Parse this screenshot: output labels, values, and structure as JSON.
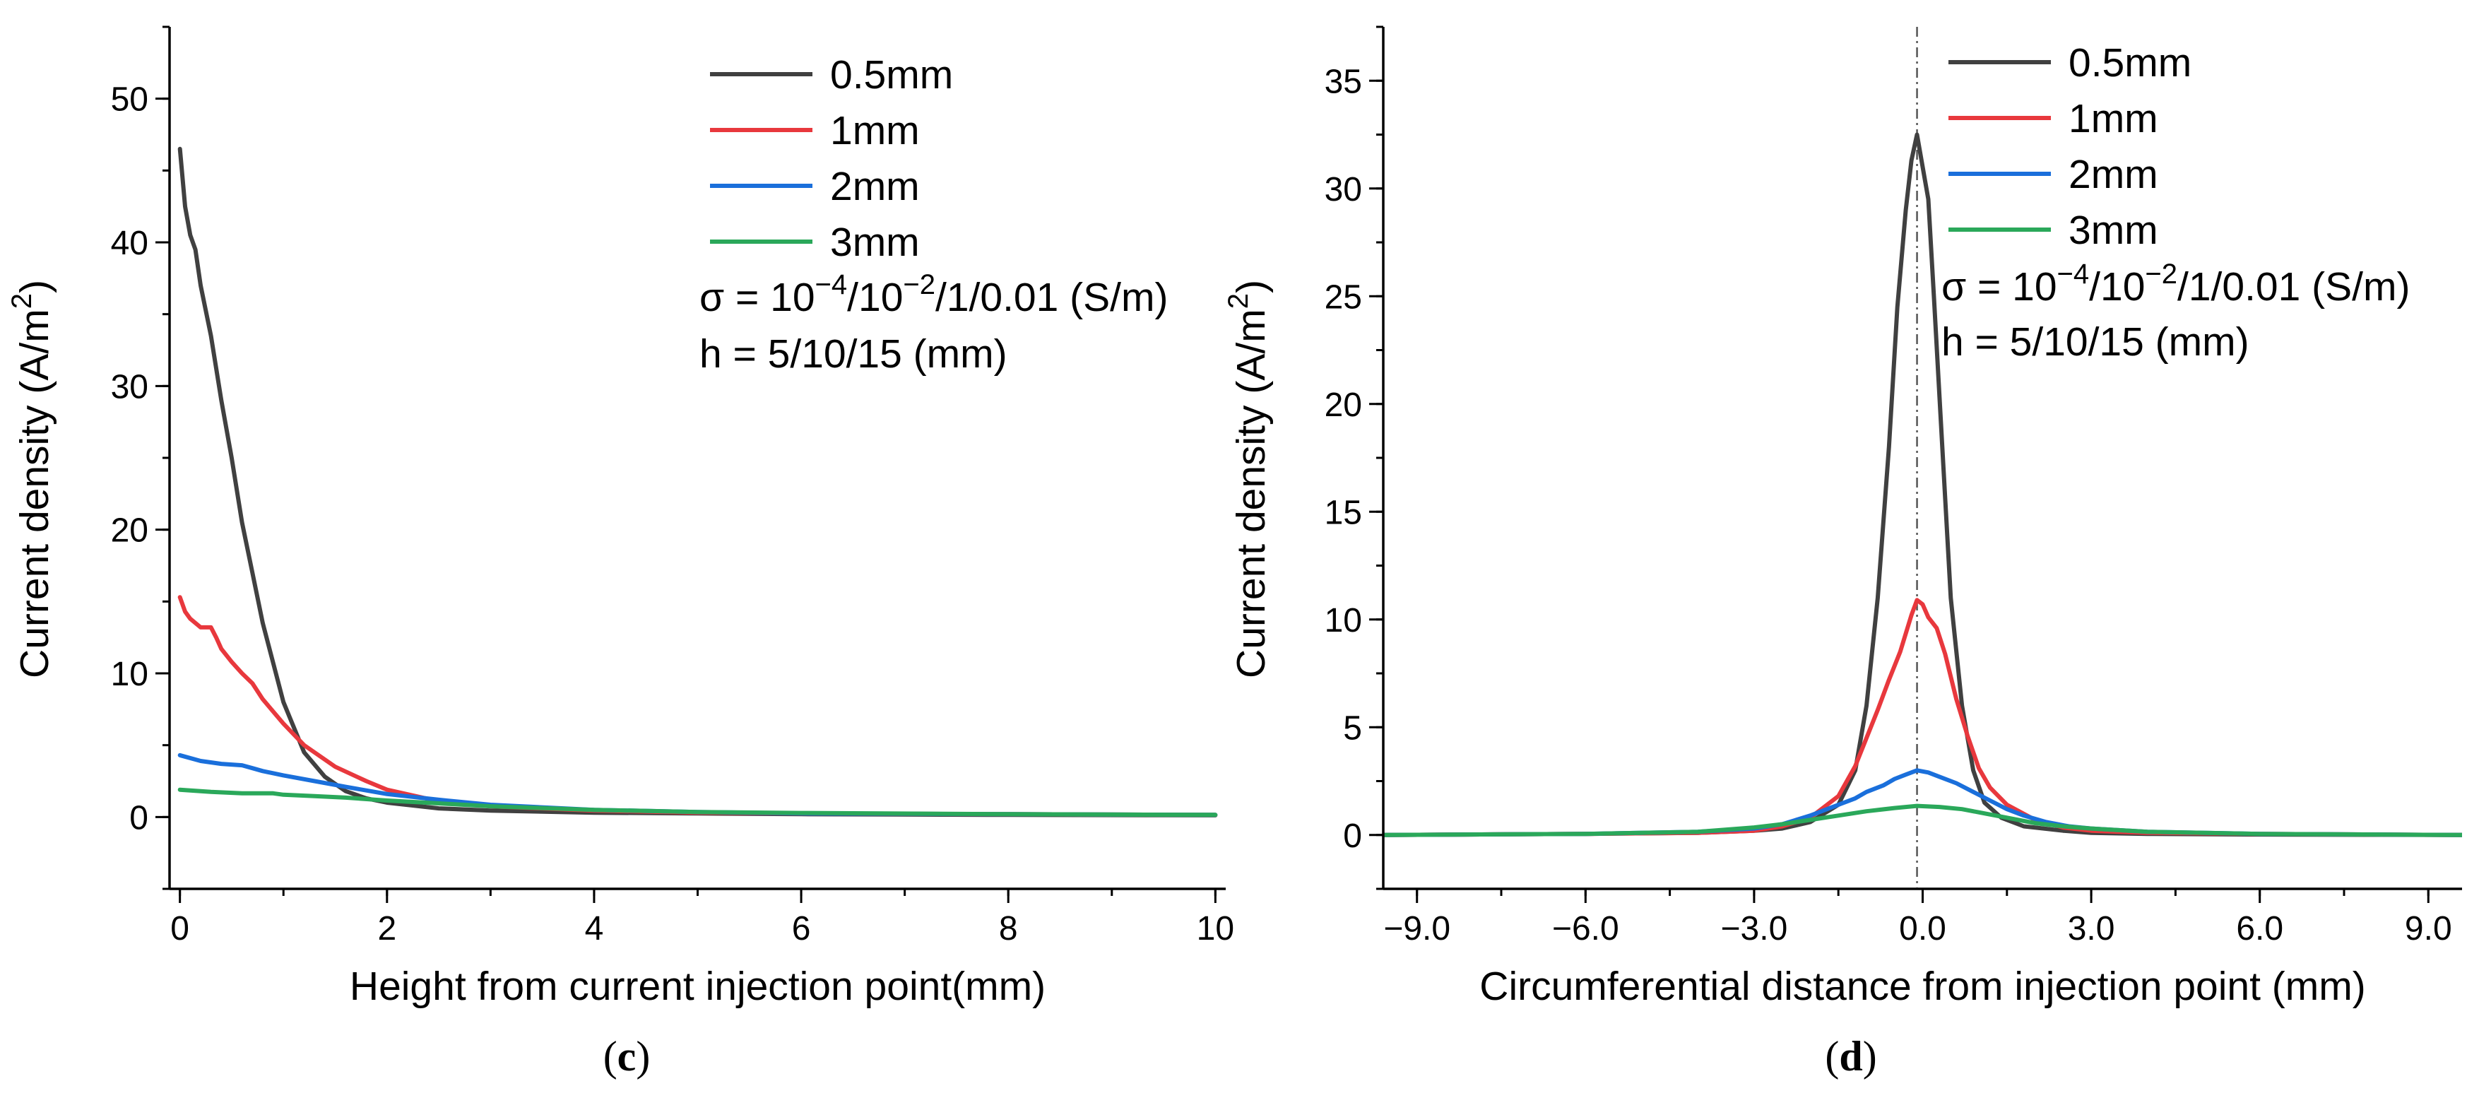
{
  "chart_data": [
    {
      "type": "line",
      "caption": "(c)",
      "xlabel": "Height from current injection point(mm)",
      "ylabel": "Current density (A/m²)",
      "ylabel_main": "Current density (A/m",
      "ylabel_sup": "2",
      "ylabel_close": ")",
      "xlim": [
        -0.1,
        10.1
      ],
      "ylim": [
        -5,
        55
      ],
      "xticks": [
        0,
        2,
        4,
        6,
        8,
        10
      ],
      "xtick_labels": [
        "0",
        "2",
        "4",
        "6",
        "8",
        "10"
      ],
      "yticks": [
        0,
        10,
        20,
        30,
        40,
        50
      ],
      "ytick_labels": [
        "0",
        "10",
        "20",
        "30",
        "40",
        "50"
      ],
      "grid": false,
      "legend_position": "top-right",
      "annotations": [
        {
          "id": "sigma",
          "parts": [
            "σ = 10",
            "−4",
            "/10",
            "−2",
            "/1/0.01 (S/m)"
          ]
        },
        {
          "id": "height",
          "text": "h = 5/10/15 (mm)"
        }
      ],
      "series": [
        {
          "name": "0.5mm",
          "color": "#404040",
          "x": [
            0,
            0.05,
            0.1,
            0.15,
            0.2,
            0.3,
            0.4,
            0.5,
            0.6,
            0.7,
            0.8,
            1.0,
            1.2,
            1.4,
            1.6,
            1.8,
            2.0,
            2.5,
            3.0,
            4.0,
            5.0,
            6.0,
            8.0,
            10.0
          ],
          "y": [
            46.5,
            42.5,
            40.5,
            39.5,
            37,
            33.5,
            29,
            25,
            20.5,
            17,
            13.5,
            8,
            4.5,
            2.8,
            1.8,
            1.3,
            1.0,
            0.6,
            0.45,
            0.3,
            0.25,
            0.2,
            0.15,
            0.12
          ]
        },
        {
          "name": "1mm",
          "color": "#e8383d",
          "x": [
            0,
            0.05,
            0.1,
            0.2,
            0.3,
            0.35,
            0.4,
            0.5,
            0.6,
            0.7,
            0.8,
            1.0,
            1.2,
            1.5,
            1.8,
            2.0,
            2.5,
            3.0,
            4.0,
            5.0,
            6.0,
            8.0,
            10.0
          ],
          "y": [
            15.3,
            14.3,
            13.8,
            13.2,
            13.2,
            12.5,
            11.7,
            10.8,
            10.0,
            9.3,
            8.2,
            6.5,
            5.0,
            3.5,
            2.5,
            1.9,
            1.1,
            0.75,
            0.45,
            0.3,
            0.25,
            0.2,
            0.15
          ]
        },
        {
          "name": "2mm",
          "color": "#1a6fdb",
          "x": [
            0,
            0.2,
            0.4,
            0.6,
            0.7,
            0.8,
            1.0,
            1.3,
            1.6,
            2.0,
            2.5,
            3.0,
            4.0,
            5.0,
            6.0,
            8.0,
            10.0
          ],
          "y": [
            4.3,
            3.9,
            3.7,
            3.6,
            3.4,
            3.2,
            2.9,
            2.5,
            2.1,
            1.6,
            1.2,
            0.85,
            0.5,
            0.35,
            0.25,
            0.2,
            0.15
          ]
        },
        {
          "name": "3mm",
          "color": "#2aa85a",
          "x": [
            0,
            0.3,
            0.6,
            0.9,
            1.0,
            1.3,
            1.6,
            2.0,
            2.5,
            3.0,
            4.0,
            5.0,
            6.0,
            8.0,
            10.0
          ],
          "y": [
            1.9,
            1.75,
            1.65,
            1.65,
            1.55,
            1.45,
            1.35,
            1.15,
            0.95,
            0.75,
            0.5,
            0.35,
            0.28,
            0.2,
            0.15
          ]
        }
      ]
    },
    {
      "type": "line",
      "caption": "(d)",
      "xlabel": "Circumferential distance from injection point (mm)",
      "ylabel": "Current density (A/m²)",
      "ylabel_main": "Current density (A/m",
      "ylabel_sup": "2",
      "ylabel_close": ")",
      "xlim": [
        -9.6,
        9.6
      ],
      "ylim": [
        -2.5,
        37.5
      ],
      "xticks": [
        -9,
        -6,
        -3,
        0,
        3,
        6,
        9
      ],
      "xtick_labels": [
        "−9.0",
        "−6.0",
        "−3.0",
        "0.0",
        "3.0",
        "6.0",
        "9.0"
      ],
      "yticks": [
        0,
        5,
        10,
        15,
        20,
        25,
        30,
        35
      ],
      "ytick_labels": [
        "0",
        "5",
        "10",
        "15",
        "20",
        "25",
        "30",
        "35"
      ],
      "grid": false,
      "legend_position": "top-right",
      "reference_line_x": -0.1,
      "annotations": [
        {
          "id": "sigma",
          "parts": [
            "σ = 10",
            "−4",
            "/10",
            "−2",
            "/1/0.01 (S/m)"
          ]
        },
        {
          "id": "height",
          "text": "h = 5/10/15 (mm)"
        }
      ],
      "series": [
        {
          "name": "0.5mm",
          "color": "#404040",
          "x": [
            -9.6,
            -6,
            -4,
            -3,
            -2.5,
            -2,
            -1.5,
            -1.2,
            -1.0,
            -0.8,
            -0.6,
            -0.45,
            -0.3,
            -0.2,
            -0.1,
            0,
            0.1,
            0.2,
            0.35,
            0.5,
            0.7,
            0.9,
            1.1,
            1.4,
            1.8,
            2.5,
            3,
            4,
            6,
            9.6
          ],
          "y": [
            0,
            0.05,
            0.1,
            0.2,
            0.3,
            0.6,
            1.4,
            3,
            6,
            11,
            18,
            24.5,
            29,
            31.3,
            32.5,
            31,
            29.5,
            25,
            18,
            11,
            6,
            3,
            1.5,
            0.8,
            0.4,
            0.2,
            0.1,
            0.05,
            0.02,
            0
          ]
        },
        {
          "name": "1mm",
          "color": "#e8383d",
          "x": [
            -9.6,
            -6,
            -4,
            -3,
            -2.5,
            -2,
            -1.5,
            -1.2,
            -1.0,
            -0.8,
            -0.6,
            -0.4,
            -0.2,
            -0.1,
            0,
            0.1,
            0.25,
            0.4,
            0.6,
            0.8,
            1.0,
            1.2,
            1.5,
            2.0,
            2.5,
            3,
            4,
            6,
            9.6
          ],
          "y": [
            0,
            0.05,
            0.1,
            0.2,
            0.4,
            0.8,
            1.8,
            3.2,
            4.5,
            5.8,
            7.2,
            8.5,
            10.2,
            10.9,
            10.7,
            10.1,
            9.6,
            8.4,
            6.3,
            4.6,
            3.1,
            2.2,
            1.4,
            0.7,
            0.35,
            0.2,
            0.1,
            0.05,
            0
          ]
        },
        {
          "name": "2mm",
          "color": "#1a6fdb",
          "x": [
            -9.6,
            -6,
            -4,
            -3,
            -2.5,
            -2,
            -1.5,
            -1.2,
            -1.0,
            -0.7,
            -0.5,
            -0.3,
            -0.1,
            0.1,
            0.3,
            0.6,
            0.9,
            1.2,
            1.5,
            1.8,
            2.2,
            2.6,
            3.0,
            4,
            6,
            9.6
          ],
          "y": [
            0,
            0.05,
            0.15,
            0.3,
            0.5,
            0.9,
            1.4,
            1.7,
            2.0,
            2.3,
            2.6,
            2.8,
            3.0,
            2.9,
            2.7,
            2.4,
            2.0,
            1.6,
            1.2,
            0.9,
            0.6,
            0.4,
            0.3,
            0.15,
            0.05,
            0
          ]
        },
        {
          "name": "3mm",
          "color": "#2aa85a",
          "x": [
            -9.6,
            -6,
            -4,
            -3,
            -2.5,
            -2,
            -1.5,
            -1.0,
            -0.5,
            -0.1,
            0.3,
            0.7,
            1.0,
            1.5,
            2.0,
            2.5,
            3.0,
            4,
            6,
            9.6
          ],
          "y": [
            0,
            0.05,
            0.15,
            0.35,
            0.5,
            0.7,
            0.9,
            1.1,
            1.25,
            1.35,
            1.3,
            1.2,
            1.05,
            0.8,
            0.55,
            0.4,
            0.3,
            0.15,
            0.05,
            0
          ]
        }
      ]
    }
  ]
}
